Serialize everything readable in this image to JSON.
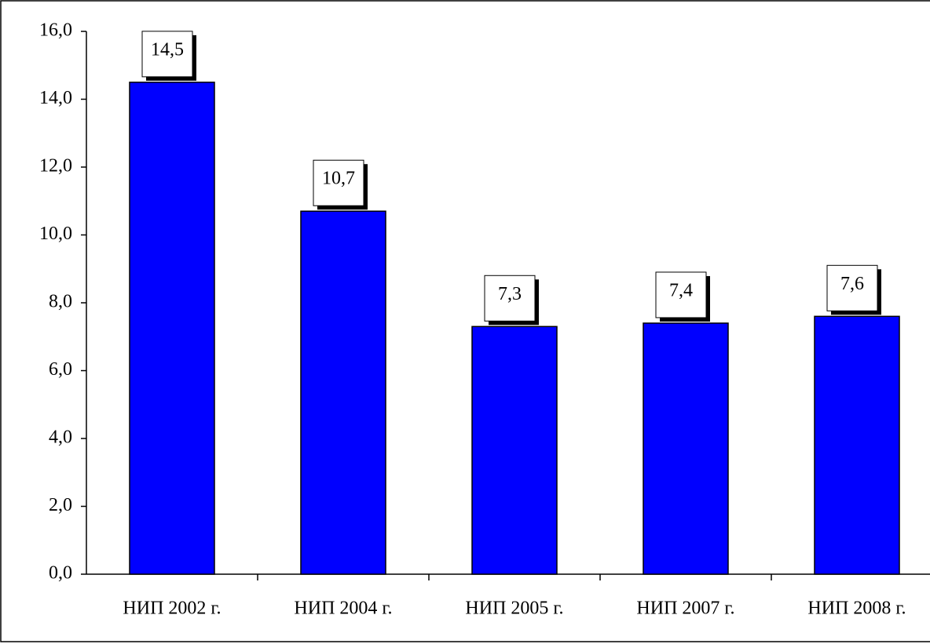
{
  "chart_data": {
    "type": "bar",
    "categories": [
      "НИП 2002 г.",
      "НИП 2004 г.",
      "НИП 2005 г.",
      "НИП 2007 г.",
      "НИП 2008 г."
    ],
    "values": [
      14.5,
      10.7,
      7.3,
      7.4,
      7.6
    ],
    "value_labels": [
      "14,5",
      "10,7",
      "7,3",
      "7,4",
      "7,6"
    ],
    "color": "#0000ff",
    "ylim": [
      0,
      16
    ],
    "yticks": [
      {
        "value": 0,
        "label": "0,0"
      },
      {
        "value": 2,
        "label": "2,0"
      },
      {
        "value": 4,
        "label": "4,0"
      },
      {
        "value": 6,
        "label": "6,0"
      },
      {
        "value": 8,
        "label": "8,0"
      },
      {
        "value": 10,
        "label": "10,0"
      },
      {
        "value": 12,
        "label": "12,0"
      },
      {
        "value": 14,
        "label": "14,0"
      },
      {
        "value": 16,
        "label": "16,0"
      }
    ],
    "grid": false
  }
}
